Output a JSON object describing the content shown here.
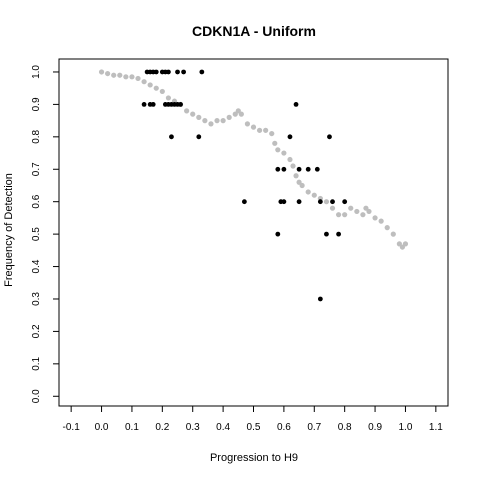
{
  "chart_data": {
    "type": "scatter",
    "title": "CDKN1A - Uniform",
    "xlabel": "Progression to H9",
    "ylabel": "Frequency of Detection",
    "xlim": [
      -0.14,
      1.14
    ],
    "ylim": [
      -0.03,
      1.04
    ],
    "x_ticks": [
      "-0.1",
      "0.0",
      "0.1",
      "0.2",
      "0.3",
      "0.4",
      "0.5",
      "0.6",
      "0.7",
      "0.8",
      "0.9",
      "1.0",
      "1.1"
    ],
    "x_tick_values": [
      -0.1,
      0.0,
      0.1,
      0.2,
      0.3,
      0.4,
      0.5,
      0.6,
      0.7,
      0.8,
      0.9,
      1.0,
      1.1
    ],
    "y_ticks": [
      "0.0",
      "0.1",
      "0.2",
      "0.3",
      "0.4",
      "0.5",
      "0.6",
      "0.7",
      "0.8",
      "0.9",
      "1.0"
    ],
    "y_tick_values": [
      0.0,
      0.1,
      0.2,
      0.3,
      0.4,
      0.5,
      0.6,
      0.7,
      0.8,
      0.9,
      1.0
    ],
    "grid": false,
    "colors": {
      "trend": "#bebebe",
      "observed": "#000000"
    },
    "series": [
      {
        "values": [
          {
            "x": 0.0,
            "y": 1.0
          },
          {
            "x": 0.02,
            "y": 0.995
          },
          {
            "x": 0.04,
            "y": 0.99
          },
          {
            "x": 0.06,
            "y": 0.99
          },
          {
            "x": 0.08,
            "y": 0.985
          },
          {
            "x": 0.1,
            "y": 0.985
          },
          {
            "x": 0.12,
            "y": 0.98
          },
          {
            "x": 0.14,
            "y": 0.97
          },
          {
            "x": 0.16,
            "y": 0.96
          },
          {
            "x": 0.18,
            "y": 0.95
          },
          {
            "x": 0.2,
            "y": 0.94
          },
          {
            "x": 0.22,
            "y": 0.92
          },
          {
            "x": 0.24,
            "y": 0.91
          },
          {
            "x": 0.26,
            "y": 0.9
          },
          {
            "x": 0.28,
            "y": 0.88
          },
          {
            "x": 0.3,
            "y": 0.87
          },
          {
            "x": 0.32,
            "y": 0.86
          },
          {
            "x": 0.34,
            "y": 0.85
          },
          {
            "x": 0.36,
            "y": 0.84
          },
          {
            "x": 0.38,
            "y": 0.85
          },
          {
            "x": 0.4,
            "y": 0.85
          },
          {
            "x": 0.42,
            "y": 0.86
          },
          {
            "x": 0.44,
            "y": 0.87
          },
          {
            "x": 0.45,
            "y": 0.88
          },
          {
            "x": 0.46,
            "y": 0.87
          },
          {
            "x": 0.48,
            "y": 0.84
          },
          {
            "x": 0.5,
            "y": 0.83
          },
          {
            "x": 0.52,
            "y": 0.82
          },
          {
            "x": 0.54,
            "y": 0.82
          },
          {
            "x": 0.56,
            "y": 0.81
          },
          {
            "x": 0.57,
            "y": 0.78
          },
          {
            "x": 0.58,
            "y": 0.76
          },
          {
            "x": 0.6,
            "y": 0.75
          },
          {
            "x": 0.62,
            "y": 0.73
          },
          {
            "x": 0.63,
            "y": 0.71
          },
          {
            "x": 0.64,
            "y": 0.68
          },
          {
            "x": 0.65,
            "y": 0.66
          },
          {
            "x": 0.66,
            "y": 0.65
          },
          {
            "x": 0.68,
            "y": 0.63
          },
          {
            "x": 0.7,
            "y": 0.62
          },
          {
            "x": 0.72,
            "y": 0.61
          },
          {
            "x": 0.74,
            "y": 0.6
          },
          {
            "x": 0.76,
            "y": 0.58
          },
          {
            "x": 0.78,
            "y": 0.56
          },
          {
            "x": 0.8,
            "y": 0.56
          },
          {
            "x": 0.82,
            "y": 0.58
          },
          {
            "x": 0.84,
            "y": 0.57
          },
          {
            "x": 0.86,
            "y": 0.56
          },
          {
            "x": 0.87,
            "y": 0.58
          },
          {
            "x": 0.88,
            "y": 0.57
          },
          {
            "x": 0.9,
            "y": 0.55
          },
          {
            "x": 0.92,
            "y": 0.54
          },
          {
            "x": 0.94,
            "y": 0.52
          },
          {
            "x": 0.96,
            "y": 0.5
          },
          {
            "x": 0.98,
            "y": 0.47
          },
          {
            "x": 0.99,
            "y": 0.46
          },
          {
            "x": 1.0,
            "y": 0.47
          }
        ]
      },
      {
        "values": [
          {
            "x": 0.14,
            "y": 0.9
          },
          {
            "x": 0.15,
            "y": 1.0
          },
          {
            "x": 0.16,
            "y": 1.0
          },
          {
            "x": 0.17,
            "y": 1.0
          },
          {
            "x": 0.18,
            "y": 1.0
          },
          {
            "x": 0.2,
            "y": 1.0
          },
          {
            "x": 0.21,
            "y": 1.0
          },
          {
            "x": 0.22,
            "y": 1.0
          },
          {
            "x": 0.25,
            "y": 1.0
          },
          {
            "x": 0.27,
            "y": 1.0
          },
          {
            "x": 0.33,
            "y": 1.0
          },
          {
            "x": 0.16,
            "y": 0.9
          },
          {
            "x": 0.17,
            "y": 0.9
          },
          {
            "x": 0.21,
            "y": 0.9
          },
          {
            "x": 0.22,
            "y": 0.9
          },
          {
            "x": 0.23,
            "y": 0.9
          },
          {
            "x": 0.24,
            "y": 0.9
          },
          {
            "x": 0.25,
            "y": 0.9
          },
          {
            "x": 0.26,
            "y": 0.9
          },
          {
            "x": 0.23,
            "y": 0.8
          },
          {
            "x": 0.32,
            "y": 0.8
          },
          {
            "x": 0.47,
            "y": 0.6
          },
          {
            "x": 0.58,
            "y": 0.7
          },
          {
            "x": 0.6,
            "y": 0.7
          },
          {
            "x": 0.59,
            "y": 0.6
          },
          {
            "x": 0.6,
            "y": 0.6
          },
          {
            "x": 0.58,
            "y": 0.5
          },
          {
            "x": 0.62,
            "y": 0.8
          },
          {
            "x": 0.64,
            "y": 0.9
          },
          {
            "x": 0.65,
            "y": 0.7
          },
          {
            "x": 0.65,
            "y": 0.6
          },
          {
            "x": 0.68,
            "y": 0.7
          },
          {
            "x": 0.71,
            "y": 0.7
          },
          {
            "x": 0.72,
            "y": 0.6
          },
          {
            "x": 0.72,
            "y": 0.3
          },
          {
            "x": 0.74,
            "y": 0.5
          },
          {
            "x": 0.75,
            "y": 0.8
          },
          {
            "x": 0.76,
            "y": 0.6
          },
          {
            "x": 0.78,
            "y": 0.5
          },
          {
            "x": 0.8,
            "y": 0.6
          }
        ]
      }
    ]
  }
}
